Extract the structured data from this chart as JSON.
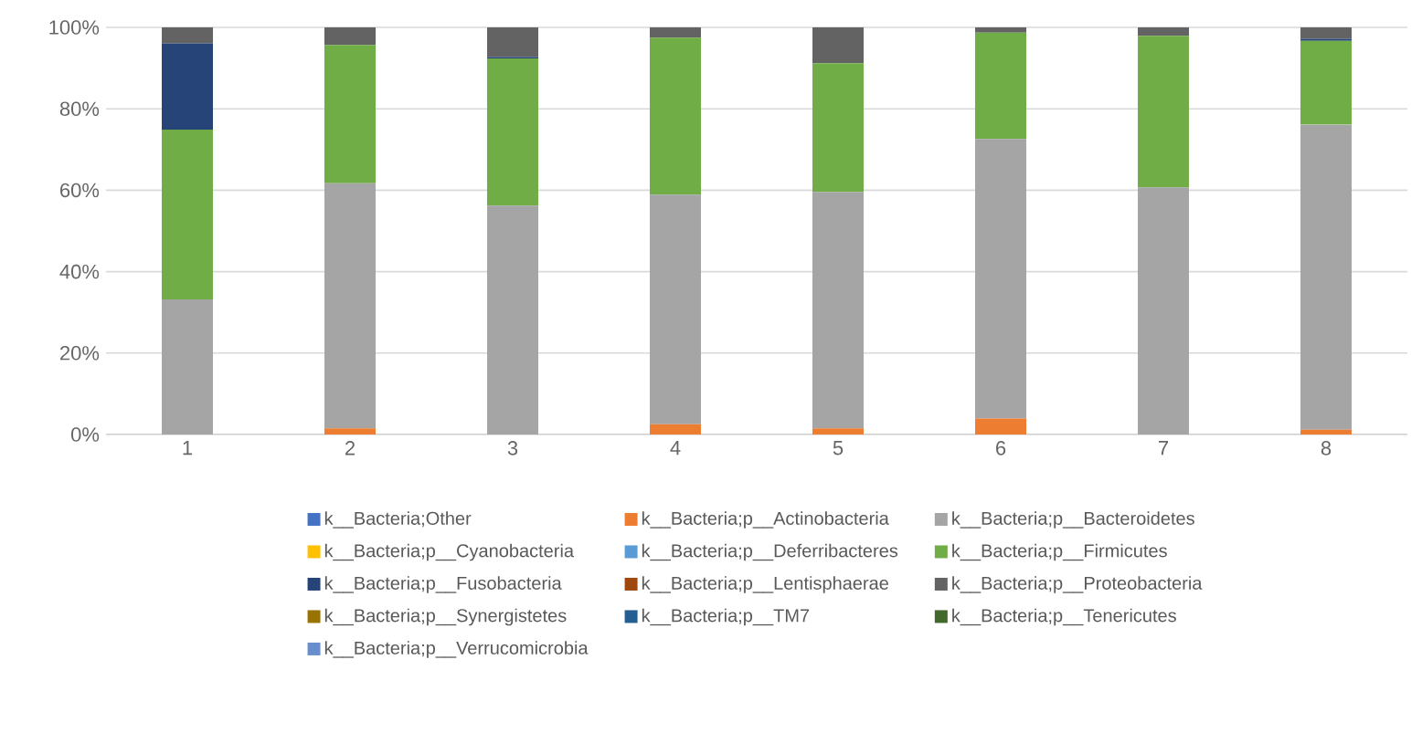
{
  "chart_data": {
    "type": "bar",
    "stacked": true,
    "categories": [
      "1",
      "2",
      "3",
      "4",
      "5",
      "6",
      "7",
      "8"
    ],
    "series": [
      {
        "name": "k__Bacteria;Other",
        "color": "#4472c4",
        "values": [
          0,
          0,
          0,
          0,
          0,
          0,
          0,
          0
        ]
      },
      {
        "name": "k__Bacteria;p__Actinobacteria",
        "color": "#ed7d31",
        "values": [
          0,
          1.5,
          0,
          2.5,
          1.5,
          3.9,
          0,
          1.2
        ]
      },
      {
        "name": "k__Bacteria;p__Bacteroidetes",
        "color": "#a5a5a5",
        "values": [
          33.2,
          60.2,
          56.2,
          56.4,
          58.1,
          68.7,
          60.7,
          74.9
        ]
      },
      {
        "name": "k__Bacteria;p__Cyanobacteria",
        "color": "#ffc000",
        "values": [
          0,
          0,
          0,
          0,
          0,
          0,
          0,
          0
        ]
      },
      {
        "name": "k__Bacteria;p__Deferribacteres",
        "color": "#5b9bd5",
        "values": [
          0,
          0,
          0,
          0,
          0,
          0,
          0,
          0
        ]
      },
      {
        "name": "k__Bacteria;p__Firmicutes",
        "color": "#70ad47",
        "values": [
          41.7,
          34.0,
          36.2,
          38.6,
          31.6,
          26.1,
          37.2,
          20.6
        ]
      },
      {
        "name": "k__Bacteria;p__Fusobacteria",
        "color": "#264478",
        "values": [
          21.2,
          0,
          0.3,
          0,
          0,
          0,
          0,
          0.5
        ]
      },
      {
        "name": "k__Bacteria;p__Lentisphaerae",
        "color": "#9e480e",
        "values": [
          0,
          0,
          0,
          0,
          0,
          0,
          0,
          0
        ]
      },
      {
        "name": "k__Bacteria;p__Proteobacteria",
        "color": "#636363",
        "values": [
          3.9,
          4.3,
          7.3,
          2.5,
          8.8,
          1.3,
          2.1,
          2.8
        ]
      },
      {
        "name": "k__Bacteria;p__Synergistetes",
        "color": "#997300",
        "values": [
          0,
          0,
          0,
          0,
          0,
          0,
          0,
          0
        ]
      },
      {
        "name": "k__Bacteria;p__TM7",
        "color": "#255e91",
        "values": [
          0,
          0,
          0,
          0,
          0,
          0,
          0,
          0
        ]
      },
      {
        "name": "k__Bacteria;p__Tenericutes",
        "color": "#43682b",
        "values": [
          0,
          0,
          0,
          0,
          0,
          0,
          0,
          0
        ]
      },
      {
        "name": "k__Bacteria;p__Verrucomicrobia",
        "color": "#698ed0",
        "values": [
          0,
          0,
          0,
          0,
          0,
          0,
          0,
          0
        ]
      }
    ],
    "ylim": [
      0,
      100
    ],
    "yticks": [
      {
        "value": 0,
        "label": "0%"
      },
      {
        "value": 20,
        "label": "20%"
      },
      {
        "value": 40,
        "label": "40%"
      },
      {
        "value": 60,
        "label": "60%"
      },
      {
        "value": 80,
        "label": "80%"
      },
      {
        "value": 100,
        "label": "100%"
      }
    ],
    "grid": "y",
    "legend": "bottom"
  }
}
